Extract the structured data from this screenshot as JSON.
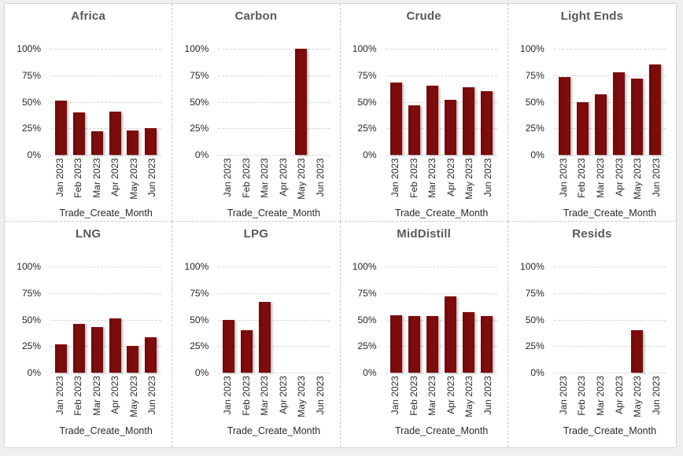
{
  "page": {
    "background_color": "#efefef",
    "frame_border_color": "#d4d4d4",
    "divider_color": "#cccccc"
  },
  "colors": {
    "bar": "#7a0b0b",
    "title_text": "#595959",
    "gridline": "#d6d6d6",
    "tick_text": "#262626"
  },
  "chart_data": [
    {
      "type": "bar",
      "title": "Africa",
      "categories": [
        "Jan 2023",
        "Feb 2023",
        "Mar 2023",
        "Apr 2023",
        "May 2023",
        "Jun 2023"
      ],
      "values": [
        51,
        40,
        22,
        41,
        23,
        25
      ],
      "xlabel": "Trade_Create_Month",
      "ylabel": "",
      "ylim": [
        0,
        100
      ],
      "y_tick_labels": [
        "100%",
        "75%",
        "50%",
        "25%",
        "0%"
      ],
      "grid": "dashed",
      "legend": "none"
    },
    {
      "type": "bar",
      "title": "Carbon",
      "categories": [
        "Jan 2023",
        "Feb 2023",
        "Mar 2023",
        "Apr 2023",
        "May 2023",
        "Jun 2023"
      ],
      "values": [
        0,
        0,
        0,
        0,
        100,
        0
      ],
      "xlabel": "Trade_Create_Month",
      "ylabel": "",
      "ylim": [
        0,
        100
      ],
      "y_tick_labels": [
        "100%",
        "75%",
        "50%",
        "25%",
        "0%"
      ],
      "grid": "dashed",
      "legend": "none"
    },
    {
      "type": "bar",
      "title": "Crude",
      "categories": [
        "Jan 2023",
        "Feb 2023",
        "Mar 2023",
        "Apr 2023",
        "May 2023",
        "Jun 2023"
      ],
      "values": [
        68,
        47,
        65,
        52,
        64,
        60
      ],
      "xlabel": "Trade_Create_Month",
      "ylabel": "",
      "ylim": [
        0,
        100
      ],
      "y_tick_labels": [
        "100%",
        "75%",
        "50%",
        "25%",
        "0%"
      ],
      "grid": "dashed",
      "legend": "none"
    },
    {
      "type": "bar",
      "title": "Light Ends",
      "categories": [
        "Jan 2023",
        "Feb 2023",
        "Mar 2023",
        "Apr 2023",
        "May 2023",
        "Jun 2023"
      ],
      "values": [
        73,
        50,
        57,
        78,
        72,
        85
      ],
      "xlabel": "Trade_Create_Month",
      "ylabel": "",
      "ylim": [
        0,
        100
      ],
      "y_tick_labels": [
        "100%",
        "75%",
        "50%",
        "25%",
        "0%"
      ],
      "grid": "dashed",
      "legend": "none"
    },
    {
      "type": "bar",
      "title": "LNG",
      "categories": [
        "Jan 2023",
        "Feb 2023",
        "Mar 2023",
        "Apr 2023",
        "May 2023",
        "Jun 2023"
      ],
      "values": [
        27,
        46,
        43,
        51,
        25,
        33
      ],
      "xlabel": "Trade_Create_Month",
      "ylabel": "",
      "ylim": [
        0,
        100
      ],
      "y_tick_labels": [
        "100%",
        "75%",
        "50%",
        "25%",
        "0%"
      ],
      "grid": "dashed",
      "legend": "none"
    },
    {
      "type": "bar",
      "title": "LPG",
      "categories": [
        "Jan 2023",
        "Feb 2023",
        "Mar 2023",
        "Apr 2023",
        "May 2023",
        "Jun 2023"
      ],
      "values": [
        50,
        40,
        67,
        0,
        0,
        0
      ],
      "xlabel": "Trade_Create_Month",
      "ylabel": "",
      "ylim": [
        0,
        100
      ],
      "y_tick_labels": [
        "100%",
        "75%",
        "50%",
        "25%",
        "0%"
      ],
      "grid": "dashed",
      "legend": "none"
    },
    {
      "type": "bar",
      "title": "MidDistill",
      "categories": [
        "Jan 2023",
        "Feb 2023",
        "Mar 2023",
        "Apr 2023",
        "May 2023",
        "Jun 2023"
      ],
      "values": [
        54,
        53,
        53,
        72,
        57,
        53
      ],
      "xlabel": "Trade_Create_Month",
      "ylabel": "",
      "ylim": [
        0,
        100
      ],
      "y_tick_labels": [
        "100%",
        "75%",
        "50%",
        "25%",
        "0%"
      ],
      "grid": "dashed",
      "legend": "none"
    },
    {
      "type": "bar",
      "title": "Resids",
      "categories": [
        "Jan 2023",
        "Feb 2023",
        "Mar 2023",
        "Apr 2023",
        "May 2023",
        "Jun 2023"
      ],
      "values": [
        0,
        0,
        0,
        0,
        40,
        0
      ],
      "xlabel": "Trade_Create_Month",
      "ylabel": "",
      "ylim": [
        0,
        100
      ],
      "y_tick_labels": [
        "100%",
        "75%",
        "50%",
        "25%",
        "0%"
      ],
      "grid": "dashed",
      "legend": "none"
    }
  ]
}
